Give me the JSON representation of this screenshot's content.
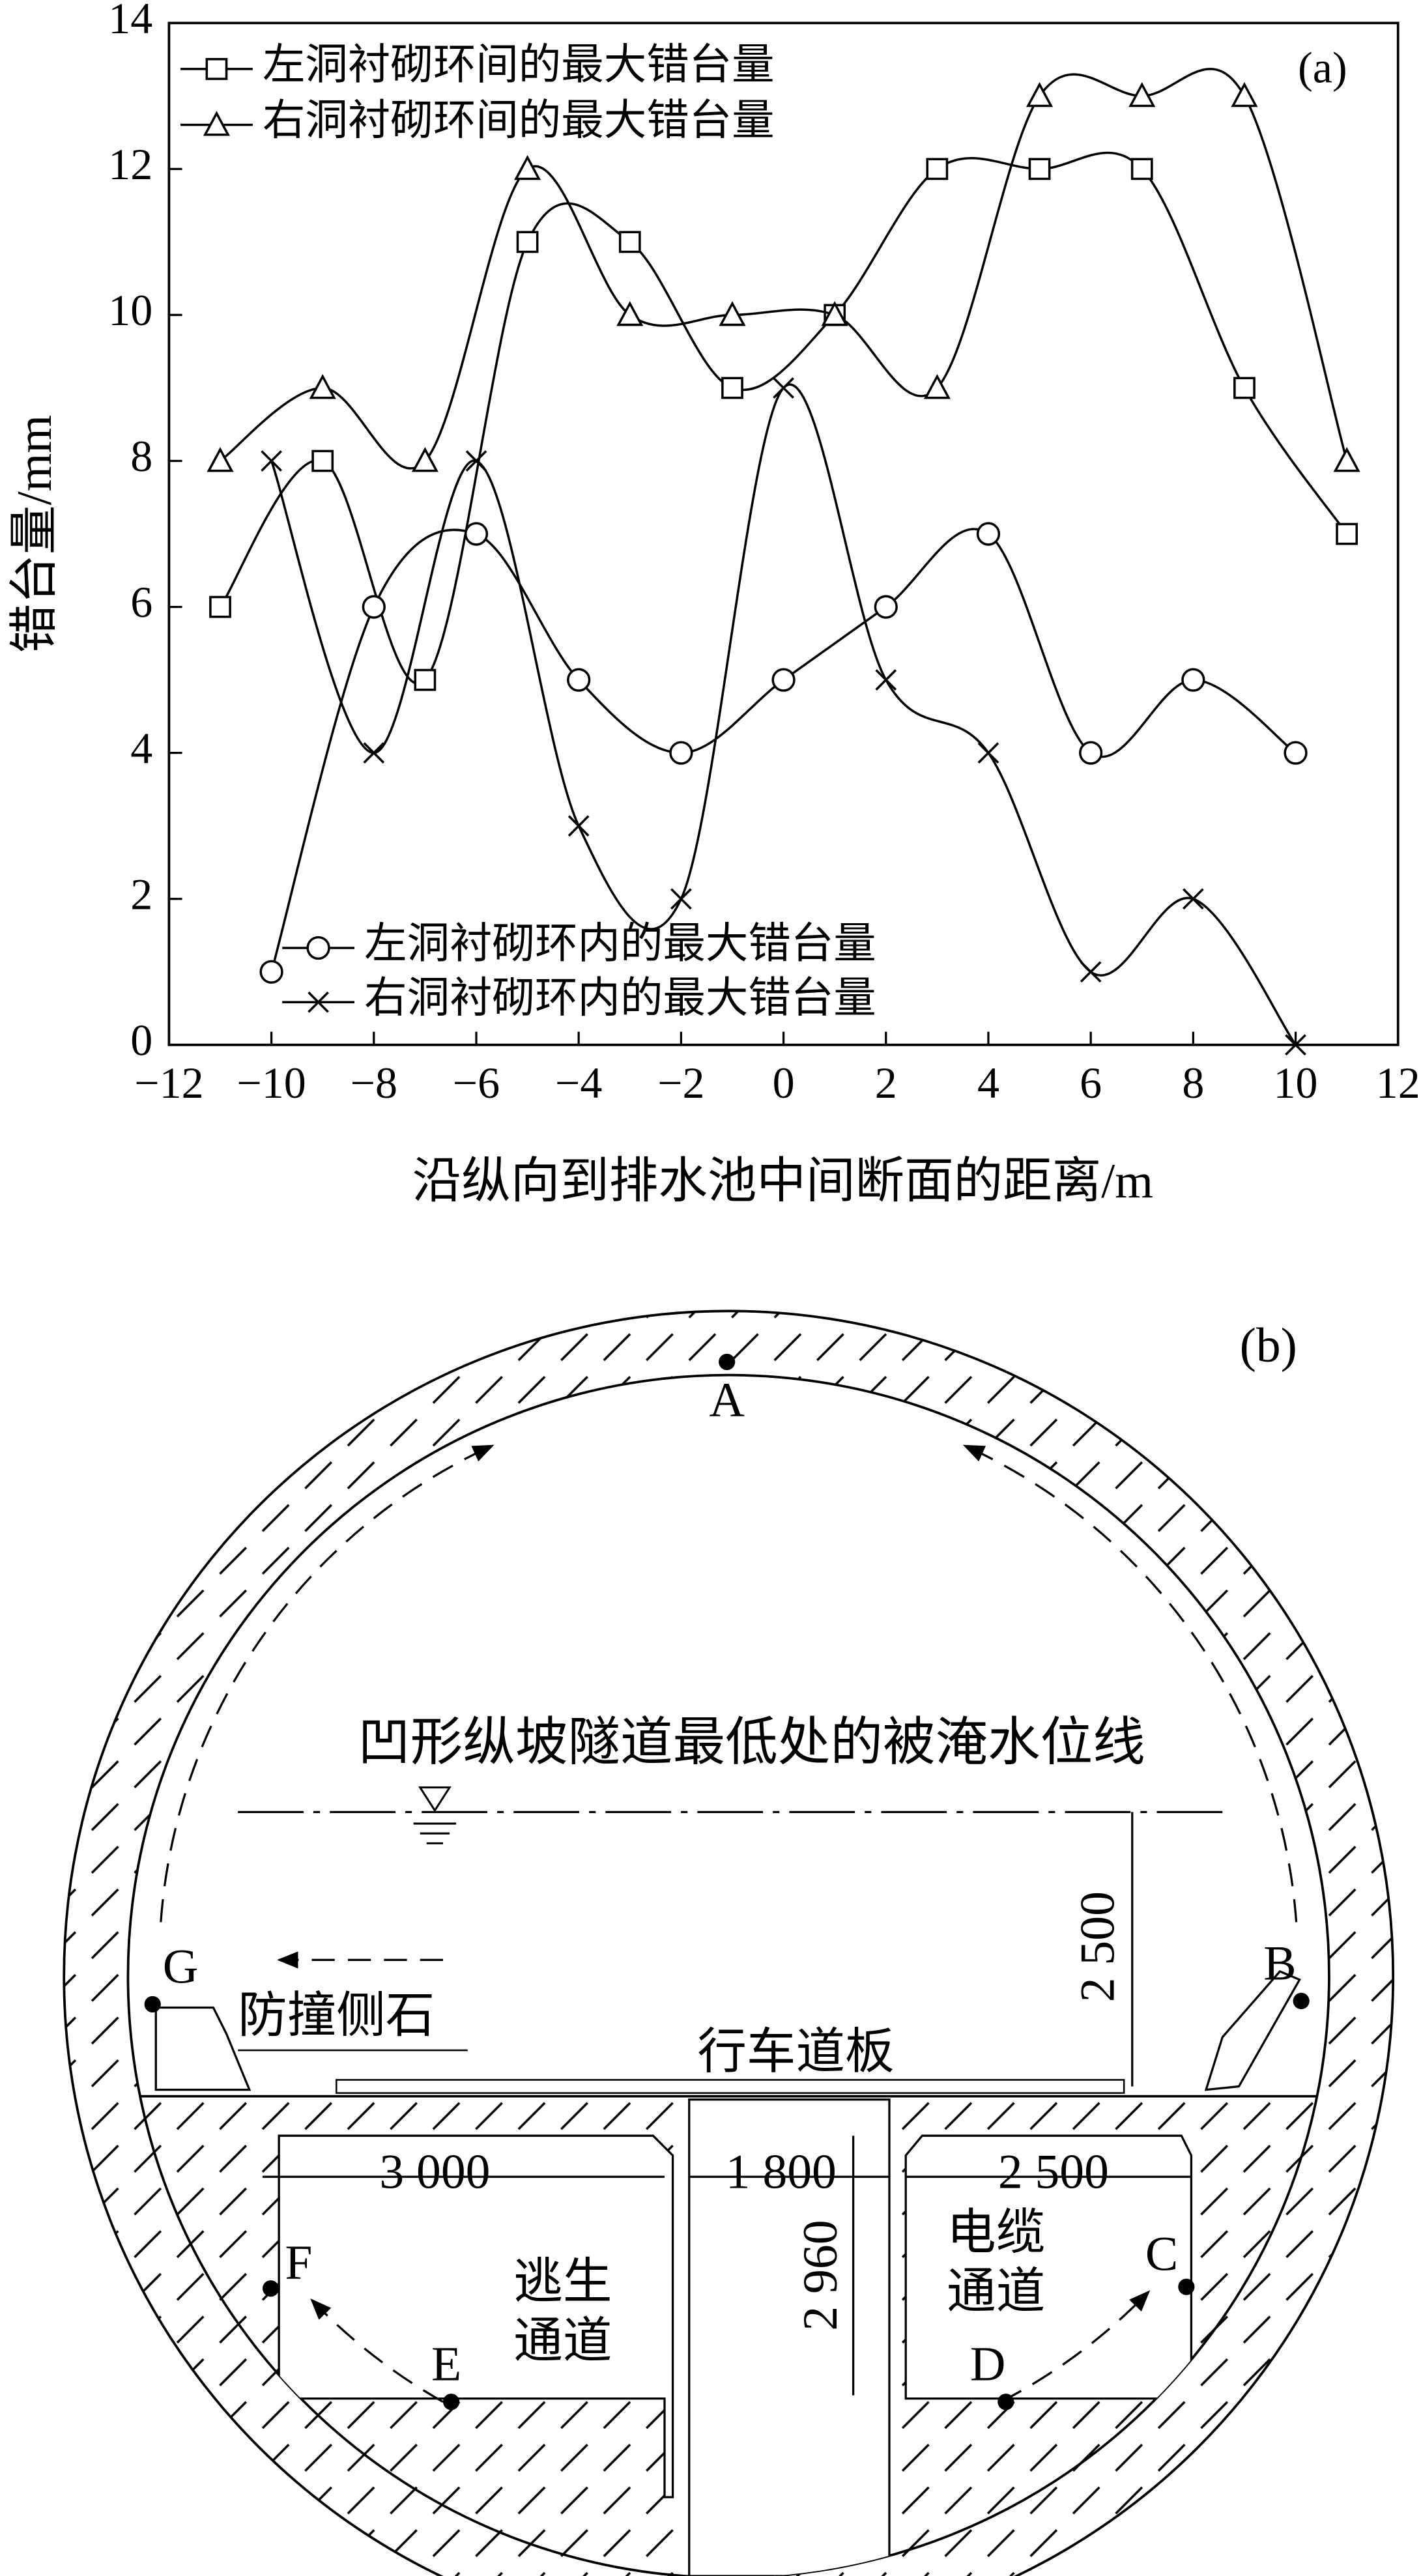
{
  "chart_data": {
    "type": "line",
    "annotation": "(a)",
    "x_label": "沿纵向到排水池中间断面的距离/m",
    "y_label": "错台量/mm",
    "xlim": [
      -12,
      12
    ],
    "ylim": [
      0,
      14
    ],
    "xticks": [
      {
        "value": -12,
        "label": "−12"
      },
      {
        "value": -10,
        "label": "−10"
      },
      {
        "value": -8,
        "label": "−8"
      },
      {
        "value": -6,
        "label": "−6"
      },
      {
        "value": -4,
        "label": "−4"
      },
      {
        "value": -2,
        "label": "−2"
      },
      0,
      2,
      4,
      6,
      8,
      10,
      12
    ],
    "yticks": [
      0,
      2,
      4,
      6,
      8,
      10,
      12,
      14
    ],
    "series": [
      {
        "name": "左洞衬砌环间的最大错台量",
        "color": "#000000",
        "marker": "square",
        "x": [
          -11,
          -9,
          -7,
          -5,
          -3,
          -1,
          1,
          3,
          5,
          7,
          9,
          11
        ],
        "values": [
          6,
          8,
          5,
          11,
          11,
          9,
          10,
          12,
          12,
          12,
          9,
          7
        ]
      },
      {
        "name": "右洞衬砌环间的最大错台量",
        "color": "#000000",
        "marker": "triangle",
        "x": [
          -11,
          -9,
          -7,
          -5,
          -3,
          -1,
          1,
          3,
          5,
          7,
          9,
          11
        ],
        "values": [
          8,
          9,
          8,
          12,
          10,
          10,
          10,
          9,
          13,
          13,
          13,
          8
        ]
      },
      {
        "name": "左洞衬砌环内的最大错台量",
        "color": "#000000",
        "marker": "circle",
        "x": [
          -10,
          -8,
          -6,
          -4,
          -2,
          0,
          2,
          4,
          6,
          8,
          10
        ],
        "values": [
          1,
          6,
          7,
          5,
          4,
          5,
          6,
          7,
          4,
          5,
          4
        ]
      },
      {
        "name": "右洞衬砌环内的最大错台量",
        "color": "#000000",
        "marker": "cross",
        "x": [
          -10,
          -8,
          -6,
          -4,
          -2,
          0,
          2,
          4,
          6,
          8,
          10
        ],
        "values": [
          8,
          4,
          8,
          3,
          2,
          9,
          5,
          4,
          1,
          2,
          0
        ]
      }
    ]
  },
  "diagram": {
    "label": "(b)",
    "points": [
      "A",
      "B",
      "C",
      "D",
      "E",
      "F",
      "G"
    ],
    "water_line": "凹形纵坡隧道最低处的被淹水位线",
    "curb": "防撞侧石",
    "deck": "行车道板",
    "dims": [
      "3 000",
      "1 800",
      "2 500",
      "2 500",
      "2 960"
    ],
    "escape": [
      "逃生",
      "通道"
    ],
    "cable": [
      "电缆",
      "通道"
    ]
  }
}
